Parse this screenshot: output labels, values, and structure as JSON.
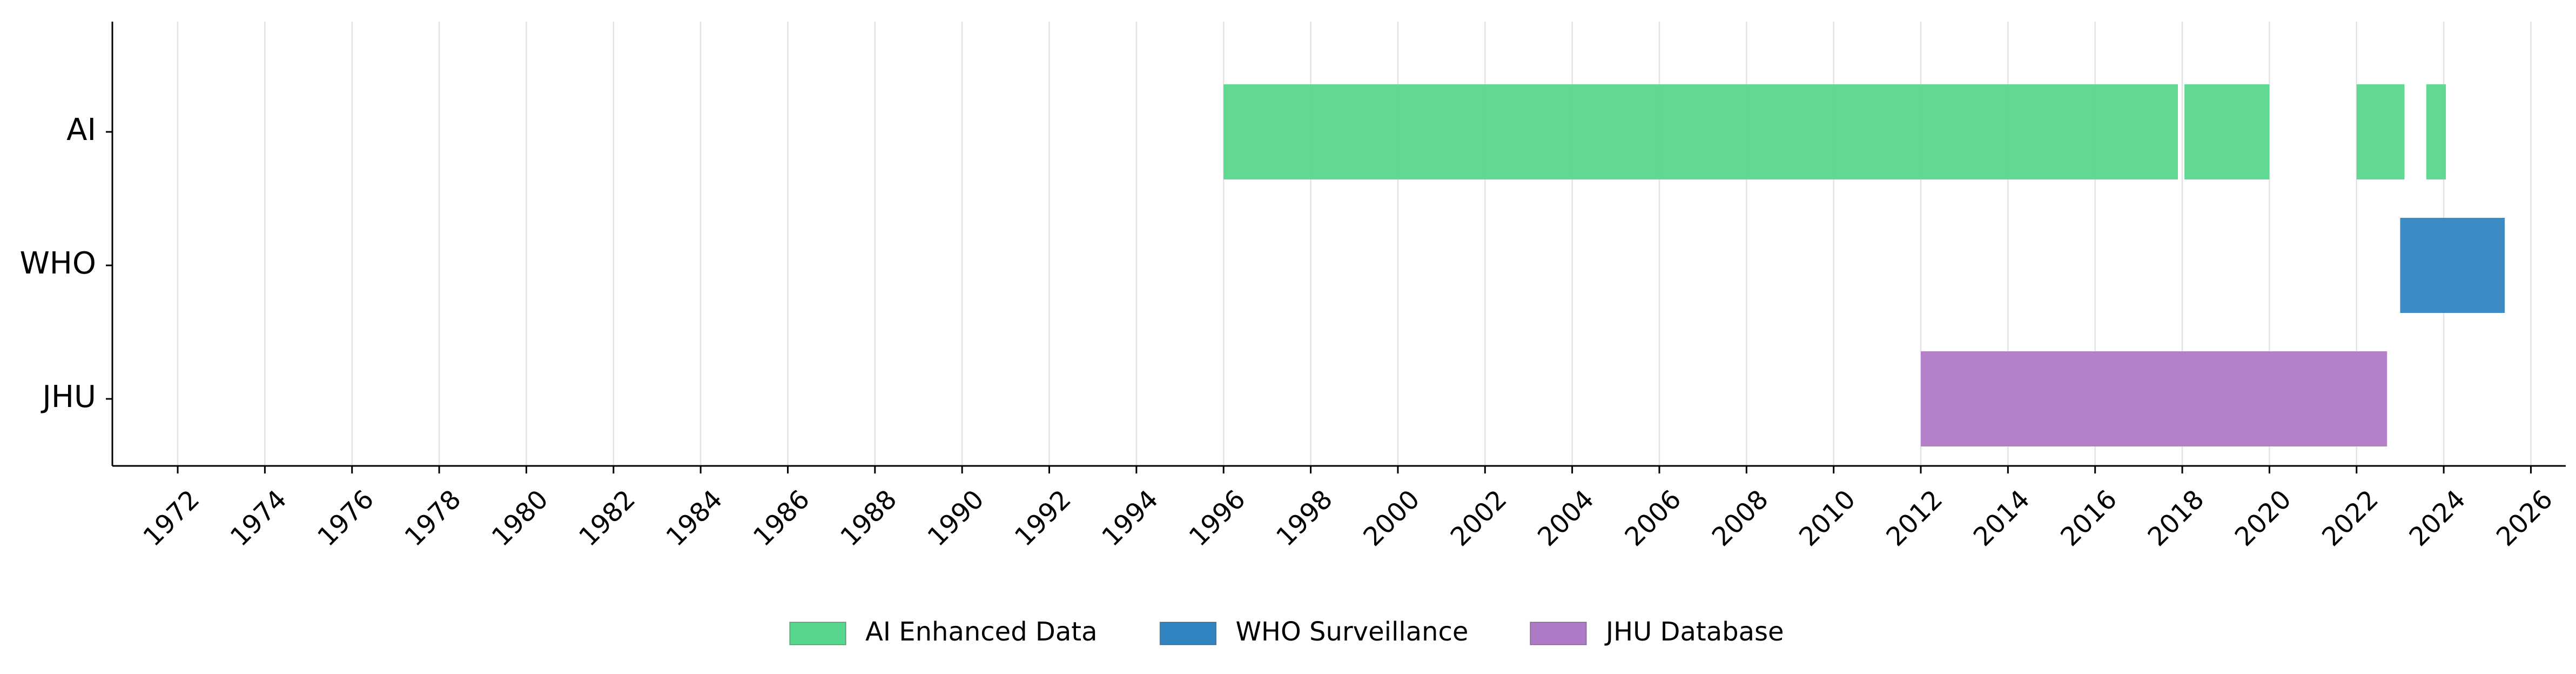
{
  "chart_data": {
    "type": "timeline",
    "title": "",
    "xlabel": "",
    "ylabel": "",
    "xlim": [
      1970.5,
      2026.8
    ],
    "grid": "vertical",
    "legend_placement": "bottom-center",
    "x_ticks": [
      "1972",
      "1974",
      "1976",
      "1978",
      "1980",
      "1982",
      "1984",
      "1986",
      "1988",
      "1990",
      "1992",
      "1994",
      "1996",
      "1998",
      "2000",
      "2002",
      "2004",
      "2006",
      "2008",
      "2010",
      "2012",
      "2014",
      "2016",
      "2018",
      "2020",
      "2022",
      "2024",
      "2026"
    ],
    "categories": [
      "AI",
      "WHO",
      "JHU"
    ],
    "series": [
      {
        "name": "AI Enhanced Data",
        "color": "#58D68D",
        "row": "AI",
        "segments": [
          [
            1996.0,
            2017.9
          ],
          [
            2018.05,
            2020.0
          ],
          [
            2022.0,
            2023.1
          ],
          [
            2023.6,
            2024.05
          ]
        ]
      },
      {
        "name": "WHO Surveillance",
        "color": "#3385C1",
        "row": "WHO",
        "segments": [
          [
            2023.0,
            2025.4
          ]
        ]
      },
      {
        "name": "JHU Database",
        "color": "#AF7AC5",
        "row": "JHU",
        "segments": [
          [
            2012.0,
            2022.7
          ]
        ]
      }
    ]
  }
}
